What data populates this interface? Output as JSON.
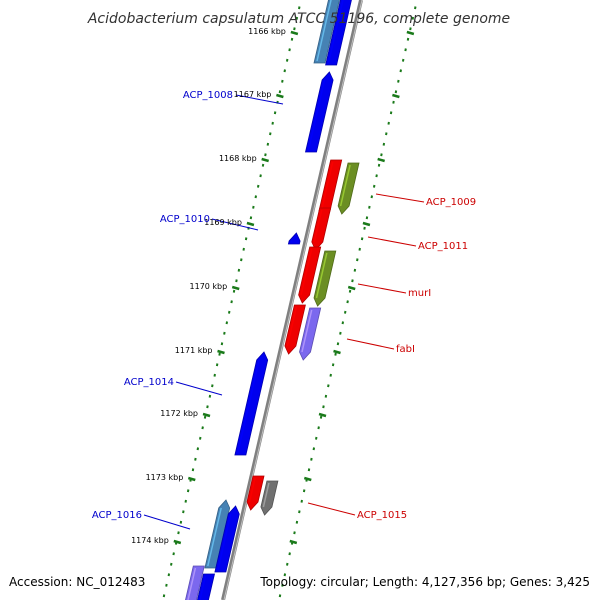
{
  "title": "Acidobacterium capsulatum ATCC 51196, complete genome",
  "footer": {
    "accession": "Accession: NC_012483",
    "topology": "Topology: circular; Length: 4,127,356 bp; Genes: 3,425"
  },
  "colors": {
    "background": "#ffffff",
    "backbone": "#808080",
    "tick": "#1a7a1a",
    "forward_gene": "#0000ee",
    "reverse_gene": "#ee0000",
    "forward_label": "#0000cc",
    "reverse_label": "#cc0000",
    "olive_gene": "#6b8e23",
    "purple_gene": "#7b68ee",
    "steel_gene": "#4682b4",
    "gray_gene": "#707070"
  },
  "tick_labels": [
    "1166 kbp",
    "1167 kbp",
    "1168 kbp",
    "1169 kbp",
    "1170 kbp",
    "1171 kbp",
    "1172 kbp",
    "1173 kbp",
    "1174 kbp"
  ],
  "gene_labels_left": [
    "ACP_1008",
    "ACP_1010",
    "ACP_1014",
    "ACP_1016"
  ],
  "gene_labels_right": [
    "ACP_1009",
    "ACP_1011",
    "murI",
    "fabI",
    "ACP_1015"
  ]
}
